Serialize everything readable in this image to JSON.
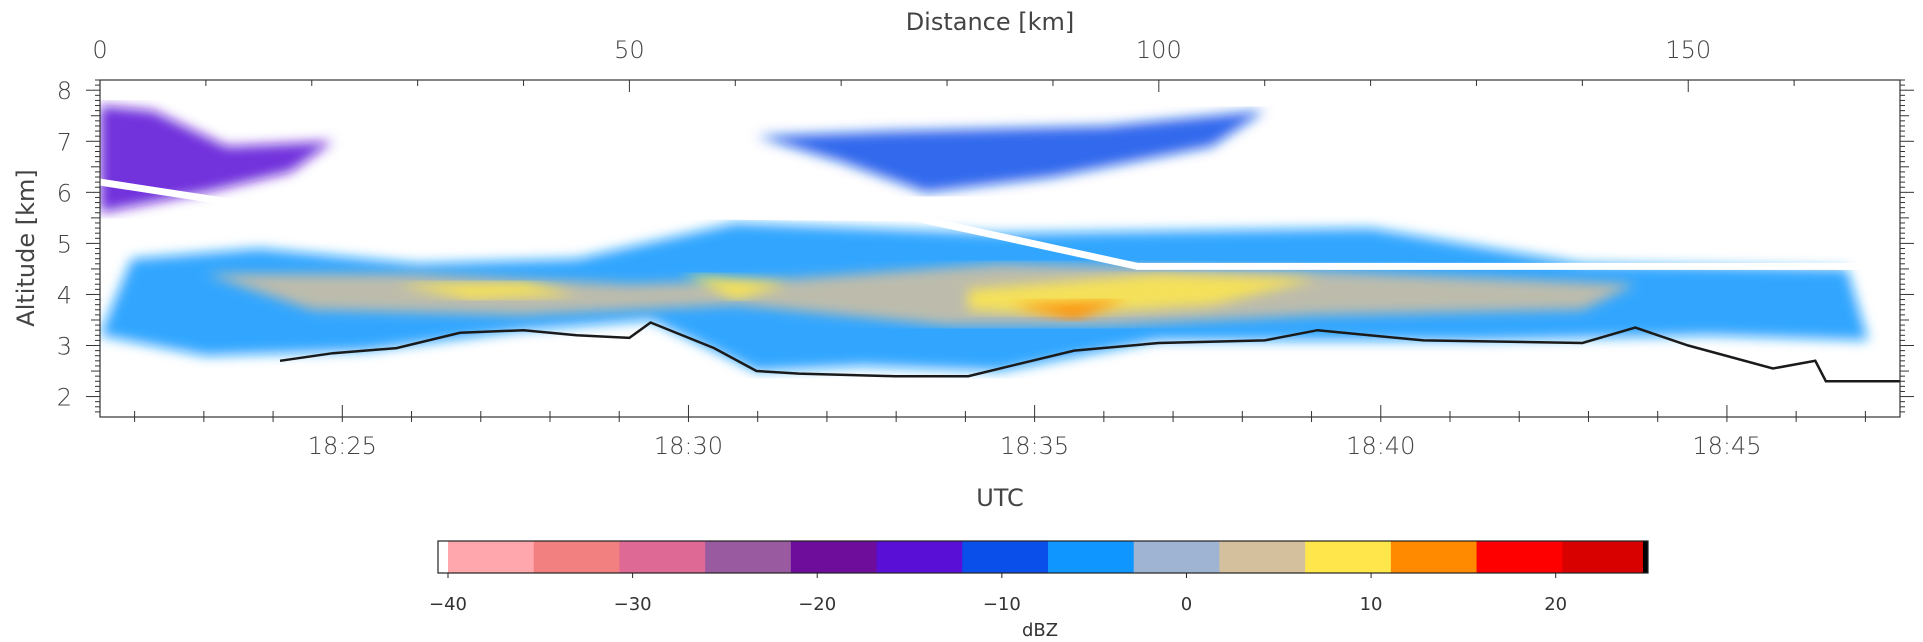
{
  "chart_data": {
    "type": "heatmap",
    "title": "",
    "xlabel": "UTC",
    "x2label": "Distance [km]",
    "ylabel": "Altitude [km]",
    "xlim": [
      "18:21:30",
      "18:47:30"
    ],
    "x2lim": [
      0,
      170
    ],
    "ylim": [
      1.6,
      8.2
    ],
    "x_ticks": [
      "18:25",
      "18:30",
      "18:35",
      "18:40",
      "18:45"
    ],
    "x2_ticks": [
      "0",
      "50",
      "100",
      "150"
    ],
    "y_ticks": [
      "2",
      "3",
      "4",
      "5",
      "6",
      "7",
      "8"
    ],
    "colorbar": {
      "label": "dBZ",
      "range": [
        -40,
        25
      ],
      "ticks": [
        "−40",
        "−30",
        "−20",
        "−10",
        "0",
        "10",
        "20"
      ],
      "colors": [
        "#ffa7ad",
        "#f28080",
        "#de6995",
        "#9a5aa0",
        "#6e0d9c",
        "#5a0fd6",
        "#0a4fea",
        "#0f96ff",
        "#9fb3d2",
        "#d5c09e",
        "#ffe74b",
        "#ff8a00",
        "#ff0000",
        "#d90000"
      ]
    },
    "flight_altitude": [
      {
        "distance": 0,
        "altitude": 6.2
      },
      {
        "distance": 22,
        "altitude": 5.5
      },
      {
        "distance": 50,
        "altitude": 5.55
      },
      {
        "distance": 77,
        "altitude": 5.5
      },
      {
        "distance": 98,
        "altitude": 4.55
      },
      {
        "distance": 170,
        "altitude": 4.55
      }
    ],
    "ground_surface": [
      {
        "distance": 17,
        "altitude": 2.7
      },
      {
        "distance": 22,
        "altitude": 2.85
      },
      {
        "distance": 28,
        "altitude": 2.95
      },
      {
        "distance": 34,
        "altitude": 3.25
      },
      {
        "distance": 40,
        "altitude": 3.3
      },
      {
        "distance": 45,
        "altitude": 3.2
      },
      {
        "distance": 50,
        "altitude": 3.15
      },
      {
        "distance": 52,
        "altitude": 3.45
      },
      {
        "distance": 58,
        "altitude": 2.95
      },
      {
        "distance": 62,
        "altitude": 2.5
      },
      {
        "distance": 66,
        "altitude": 2.45
      },
      {
        "distance": 75,
        "altitude": 2.4
      },
      {
        "distance": 82,
        "altitude": 2.4
      },
      {
        "distance": 88,
        "altitude": 2.7
      },
      {
        "distance": 92,
        "altitude": 2.9
      },
      {
        "distance": 100,
        "altitude": 3.05
      },
      {
        "distance": 110,
        "altitude": 3.1
      },
      {
        "distance": 115,
        "altitude": 3.3
      },
      {
        "distance": 125,
        "altitude": 3.1
      },
      {
        "distance": 140,
        "altitude": 3.05
      },
      {
        "distance": 145,
        "altitude": 3.35
      },
      {
        "distance": 150,
        "altitude": 3.0
      },
      {
        "distance": 158,
        "altitude": 2.55
      },
      {
        "distance": 162,
        "altitude": 2.7
      },
      {
        "distance": 163,
        "altitude": 2.3
      },
      {
        "distance": 170,
        "altitude": 2.3
      }
    ],
    "echo_regions": [
      {
        "name": "",
        "dbz": -15,
        "points": [
          [
            0,
            7.7
          ],
          [
            5,
            7.6
          ],
          [
            12,
            6.9
          ],
          [
            22,
            7.0
          ],
          [
            18,
            6.4
          ],
          [
            10,
            6.0
          ],
          [
            0,
            5.6
          ]
        ]
      },
      {
        "name": "",
        "dbz": -10,
        "points": [
          [
            62,
            7.1
          ],
          [
            75,
            7.2
          ],
          [
            95,
            7.3
          ],
          [
            110,
            7.6
          ],
          [
            105,
            6.9
          ],
          [
            90,
            6.3
          ],
          [
            78,
            6.0
          ],
          [
            70,
            6.6
          ]
        ]
      },
      {
        "name": "",
        "dbz": -5,
        "points": [
          [
            3,
            4.7
          ],
          [
            15,
            4.9
          ],
          [
            30,
            4.6
          ],
          [
            45,
            4.7
          ],
          [
            60,
            5.4
          ],
          [
            85,
            5.2
          ],
          [
            120,
            5.3
          ],
          [
            140,
            4.6
          ],
          [
            165,
            4.5
          ],
          [
            167,
            3.1
          ],
          [
            152,
            3.2
          ],
          [
            130,
            3.1
          ],
          [
            100,
            3.1
          ],
          [
            85,
            2.5
          ],
          [
            72,
            2.6
          ],
          [
            62,
            2.5
          ],
          [
            52,
            3.5
          ],
          [
            40,
            3.3
          ],
          [
            25,
            2.9
          ],
          [
            10,
            2.8
          ],
          [
            0,
            3.2
          ]
        ]
      },
      {
        "name": "",
        "dbz": 3,
        "points": [
          [
            10,
            4.4
          ],
          [
            30,
            4.4
          ],
          [
            50,
            4.2
          ],
          [
            65,
            4.3
          ],
          [
            85,
            4.6
          ],
          [
            110,
            4.5
          ],
          [
            145,
            4.2
          ],
          [
            140,
            3.7
          ],
          [
            115,
            3.6
          ],
          [
            95,
            3.4
          ],
          [
            80,
            3.4
          ],
          [
            60,
            3.8
          ],
          [
            40,
            3.6
          ],
          [
            20,
            3.7
          ]
        ]
      },
      {
        "name": "",
        "dbz": 8,
        "points": [
          [
            28,
            4.2
          ],
          [
            40,
            4.25
          ],
          [
            45,
            4.0
          ],
          [
            35,
            3.9
          ]
        ]
      },
      {
        "name": "",
        "dbz": 8,
        "points": [
          [
            55,
            4.4
          ],
          [
            65,
            4.2
          ],
          [
            60,
            3.9
          ]
        ]
      },
      {
        "name": "",
        "dbz": 8,
        "points": [
          [
            82,
            4.1
          ],
          [
            100,
            4.4
          ],
          [
            115,
            4.3
          ],
          [
            105,
            3.8
          ],
          [
            90,
            3.6
          ],
          [
            82,
            3.7
          ]
        ]
      },
      {
        "name": "",
        "dbz": 12,
        "points": [
          [
            86,
            3.8
          ],
          [
            97,
            3.9
          ],
          [
            92,
            3.5
          ]
        ]
      }
    ]
  }
}
